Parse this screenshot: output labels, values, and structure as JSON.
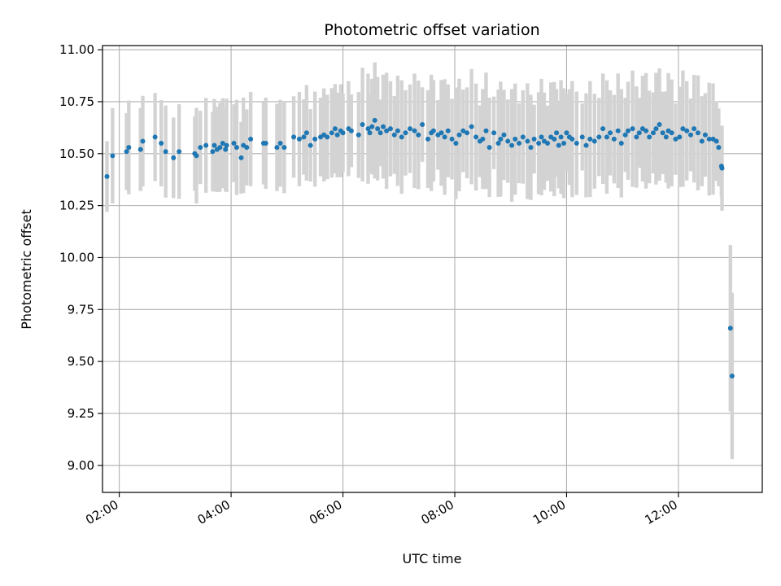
{
  "chart_data": {
    "type": "scatter",
    "title": "Photometric offset variation",
    "xlabel": "UTC time",
    "ylabel": "Photometric offset",
    "xlim": [
      1.7,
      13.5
    ],
    "ylim": [
      8.87,
      11.02
    ],
    "x_ticks": [
      2,
      4,
      6,
      8,
      10,
      12
    ],
    "x_tick_labels": [
      "02:00",
      "04:00",
      "06:00",
      "08:00",
      "10:00",
      "12:00"
    ],
    "y_ticks": [
      9.0,
      9.25,
      9.5,
      9.75,
      10.0,
      10.25,
      10.5,
      10.75,
      11.0
    ],
    "y_tick_labels": [
      "9.00",
      "9.25",
      "9.50",
      "9.75",
      "10.00",
      "10.25",
      "10.50",
      "10.75",
      "11.00"
    ],
    "grid": true,
    "colors": {
      "point": "#1f77b4",
      "errorbar": "#d3d3d3",
      "grid": "#b0b0b0"
    },
    "series": [
      {
        "name": "offset",
        "x": [
          1.78,
          1.88,
          2.13,
          2.17,
          2.38,
          2.42,
          2.64,
          2.75,
          2.83,
          2.97,
          3.07,
          3.35,
          3.38,
          3.45,
          3.55,
          3.67,
          3.7,
          3.75,
          3.8,
          3.85,
          3.9,
          3.92,
          4.05,
          4.1,
          4.18,
          4.22,
          4.28,
          4.35,
          4.58,
          4.62,
          4.82,
          4.88,
          4.95,
          5.12,
          5.22,
          5.3,
          5.35,
          5.42,
          5.5,
          5.6,
          5.66,
          5.72,
          5.8,
          5.86,
          5.9,
          5.96,
          6.0,
          6.1,
          6.15,
          6.28,
          6.35,
          6.45,
          6.48,
          6.52,
          6.57,
          6.62,
          6.67,
          6.72,
          6.78,
          6.85,
          6.92,
          6.98,
          7.05,
          7.12,
          7.2,
          7.28,
          7.35,
          7.42,
          7.52,
          7.58,
          7.62,
          7.7,
          7.76,
          7.82,
          7.88,
          7.95,
          8.02,
          8.08,
          8.15,
          8.22,
          8.3,
          8.38,
          8.45,
          8.5,
          8.56,
          8.62,
          8.7,
          8.78,
          8.82,
          8.88,
          8.95,
          9.02,
          9.08,
          9.15,
          9.22,
          9.3,
          9.36,
          9.42,
          9.5,
          9.55,
          9.6,
          9.66,
          9.72,
          9.78,
          9.82,
          9.86,
          9.9,
          9.95,
          10.0,
          10.05,
          10.1,
          10.18,
          10.28,
          10.35,
          10.42,
          10.5,
          10.58,
          10.65,
          10.72,
          10.78,
          10.85,
          10.92,
          10.98,
          11.05,
          11.1,
          11.18,
          11.25,
          11.3,
          11.36,
          11.42,
          11.48,
          11.55,
          11.6,
          11.66,
          11.72,
          11.78,
          11.82,
          11.88,
          11.95,
          12.02,
          12.08,
          12.15,
          12.22,
          12.28,
          12.35,
          12.42,
          12.48,
          12.55,
          12.62,
          12.68,
          12.72,
          12.77,
          12.78,
          12.93,
          12.96
        ],
        "y": [
          10.39,
          10.49,
          10.51,
          10.53,
          10.52,
          10.56,
          10.58,
          10.55,
          10.51,
          10.48,
          10.51,
          10.5,
          10.49,
          10.53,
          10.54,
          10.51,
          10.54,
          10.52,
          10.53,
          10.55,
          10.52,
          10.54,
          10.55,
          10.53,
          10.48,
          10.54,
          10.53,
          10.57,
          10.55,
          10.55,
          10.53,
          10.55,
          10.53,
          10.58,
          10.57,
          10.58,
          10.6,
          10.54,
          10.57,
          10.58,
          10.59,
          10.58,
          10.6,
          10.62,
          10.59,
          10.61,
          10.6,
          10.62,
          10.61,
          10.59,
          10.64,
          10.62,
          10.6,
          10.63,
          10.66,
          10.62,
          10.6,
          10.63,
          10.61,
          10.62,
          10.59,
          10.61,
          10.58,
          10.6,
          10.62,
          10.61,
          10.59,
          10.64,
          10.57,
          10.6,
          10.61,
          10.59,
          10.6,
          10.58,
          10.61,
          10.57,
          10.55,
          10.59,
          10.61,
          10.6,
          10.63,
          10.58,
          10.56,
          10.57,
          10.61,
          10.53,
          10.6,
          10.55,
          10.57,
          10.59,
          10.56,
          10.54,
          10.57,
          10.55,
          10.58,
          10.56,
          10.53,
          10.57,
          10.55,
          10.58,
          10.56,
          10.55,
          10.58,
          10.57,
          10.6,
          10.54,
          10.58,
          10.55,
          10.6,
          10.58,
          10.57,
          10.55,
          10.58,
          10.54,
          10.57,
          10.56,
          10.58,
          10.62,
          10.58,
          10.6,
          10.57,
          10.61,
          10.55,
          10.59,
          10.61,
          10.62,
          10.58,
          10.6,
          10.62,
          10.61,
          10.58,
          10.6,
          10.62,
          10.64,
          10.6,
          10.58,
          10.61,
          10.6,
          10.57,
          10.58,
          10.62,
          10.61,
          10.59,
          10.62,
          10.6,
          10.56,
          10.59,
          10.57,
          10.57,
          10.56,
          10.53,
          10.44,
          10.43,
          9.66,
          9.43
        ]
      }
    ]
  }
}
